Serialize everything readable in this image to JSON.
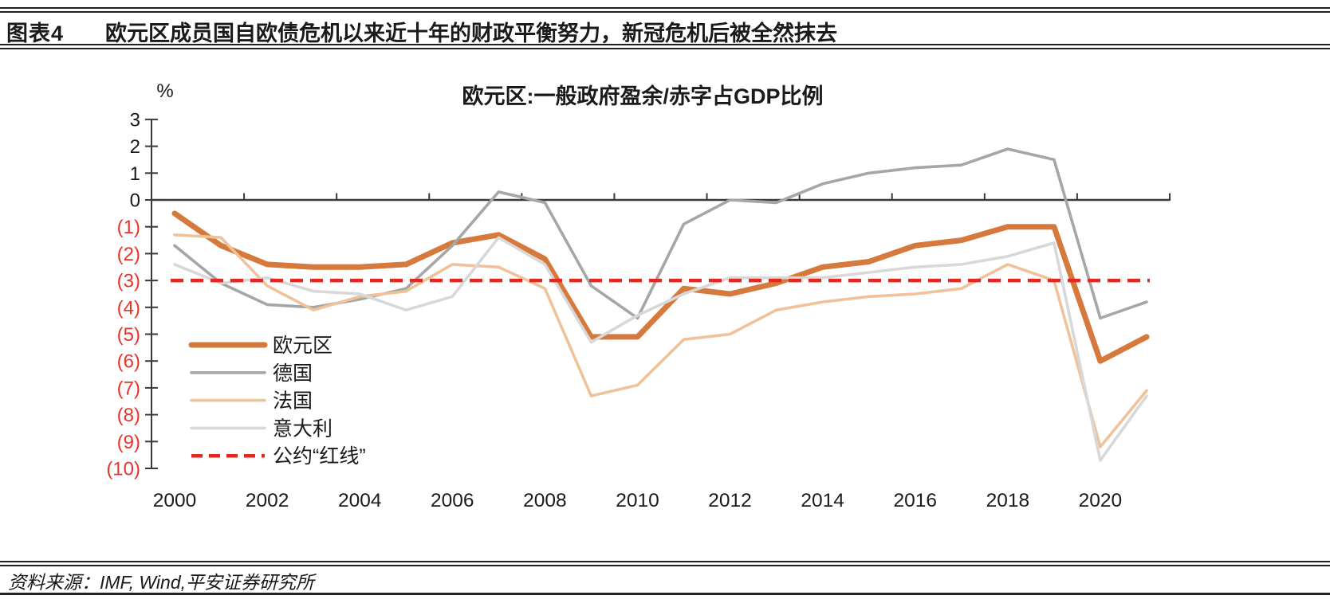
{
  "header": {
    "tag": "图表4",
    "title": "欧元区成员国自欧债危机以来近十年的财政平衡努力，新冠危机后被全然抹去"
  },
  "footer": {
    "source": "资料来源：IMF, Wind,平安证券研究所"
  },
  "chart_data": {
    "type": "line",
    "title": "欧元区:一般政府盈余/赤字占GDP比例",
    "y_unit_label": "%",
    "ylim": [
      -10,
      3
    ],
    "grid": false,
    "legend_position": "inside-bottom-left",
    "years": [
      2000,
      2001,
      2002,
      2003,
      2004,
      2005,
      2006,
      2007,
      2008,
      2009,
      2010,
      2011,
      2012,
      2013,
      2014,
      2015,
      2016,
      2017,
      2018,
      2019,
      2020,
      2021
    ],
    "x_tick_years": [
      2000,
      2002,
      2004,
      2006,
      2008,
      2010,
      2012,
      2014,
      2016,
      2018,
      2020
    ],
    "y_ticks": [
      {
        "value": 3,
        "label": "3",
        "color": "#1a1a1a"
      },
      {
        "value": 2,
        "label": "2",
        "color": "#1a1a1a"
      },
      {
        "value": 1,
        "label": "1",
        "color": "#1a1a1a"
      },
      {
        "value": 0,
        "label": "0",
        "color": "#1a1a1a"
      },
      {
        "value": -1,
        "label": "(1)",
        "color": "#e8332a"
      },
      {
        "value": -2,
        "label": "(2)",
        "color": "#e8332a"
      },
      {
        "value": -3,
        "label": "(3)",
        "color": "#e8332a"
      },
      {
        "value": -4,
        "label": "(4)",
        "color": "#e8332a"
      },
      {
        "value": -5,
        "label": "(5)",
        "color": "#e8332a"
      },
      {
        "value": -6,
        "label": "(6)",
        "color": "#e8332a"
      },
      {
        "value": -7,
        "label": "(7)",
        "color": "#e8332a"
      },
      {
        "value": -8,
        "label": "(8)",
        "color": "#e8332a"
      },
      {
        "value": -9,
        "label": "(9)",
        "color": "#e8332a"
      },
      {
        "value": -10,
        "label": "(10)",
        "color": "#e8332a"
      }
    ],
    "series": [
      {
        "name": "欧元区",
        "color": "#d5793c",
        "width": 7,
        "values": [
          -0.5,
          -1.7,
          -2.4,
          -2.5,
          -2.5,
          -2.4,
          -1.6,
          -1.3,
          -2.2,
          -5.1,
          -5.1,
          -3.3,
          -3.5,
          -3.1,
          -2.5,
          -2.3,
          -1.7,
          -1.5,
          -1.0,
          -1.0,
          -6.0,
          -5.1
        ]
      },
      {
        "name": "德国",
        "color": "#a6a6a6",
        "width": 3.6,
        "values": [
          -1.7,
          -3.1,
          -3.9,
          -4.0,
          -3.7,
          -3.3,
          -1.7,
          0.3,
          -0.1,
          -3.2,
          -4.4,
          -0.9,
          0.0,
          -0.1,
          0.6,
          1.0,
          1.2,
          1.3,
          1.9,
          1.5,
          -4.4,
          -3.8
        ]
      },
      {
        "name": "法国",
        "color": "#f0c29a",
        "width": 3.6,
        "values": [
          -1.3,
          -1.4,
          -3.2,
          -4.1,
          -3.6,
          -3.4,
          -2.4,
          -2.5,
          -3.3,
          -7.3,
          -6.9,
          -5.2,
          -5.0,
          -4.1,
          -3.8,
          -3.6,
          -3.5,
          -3.3,
          -2.4,
          -3.0,
          -9.2,
          -7.1
        ]
      },
      {
        "name": "意大利",
        "color": "#d8d8d8",
        "width": 3.6,
        "values": [
          -2.4,
          -3.1,
          -2.9,
          -3.4,
          -3.5,
          -4.1,
          -3.6,
          -1.4,
          -2.4,
          -5.3,
          -4.3,
          -3.5,
          -2.9,
          -2.9,
          -2.9,
          -2.7,
          -2.5,
          -2.4,
          -2.1,
          -1.6,
          -9.7,
          -7.3
        ]
      }
    ],
    "reference_line": {
      "name": "公约“红线”",
      "value": -3,
      "color": "#e8251e",
      "width": 4.5
    }
  }
}
